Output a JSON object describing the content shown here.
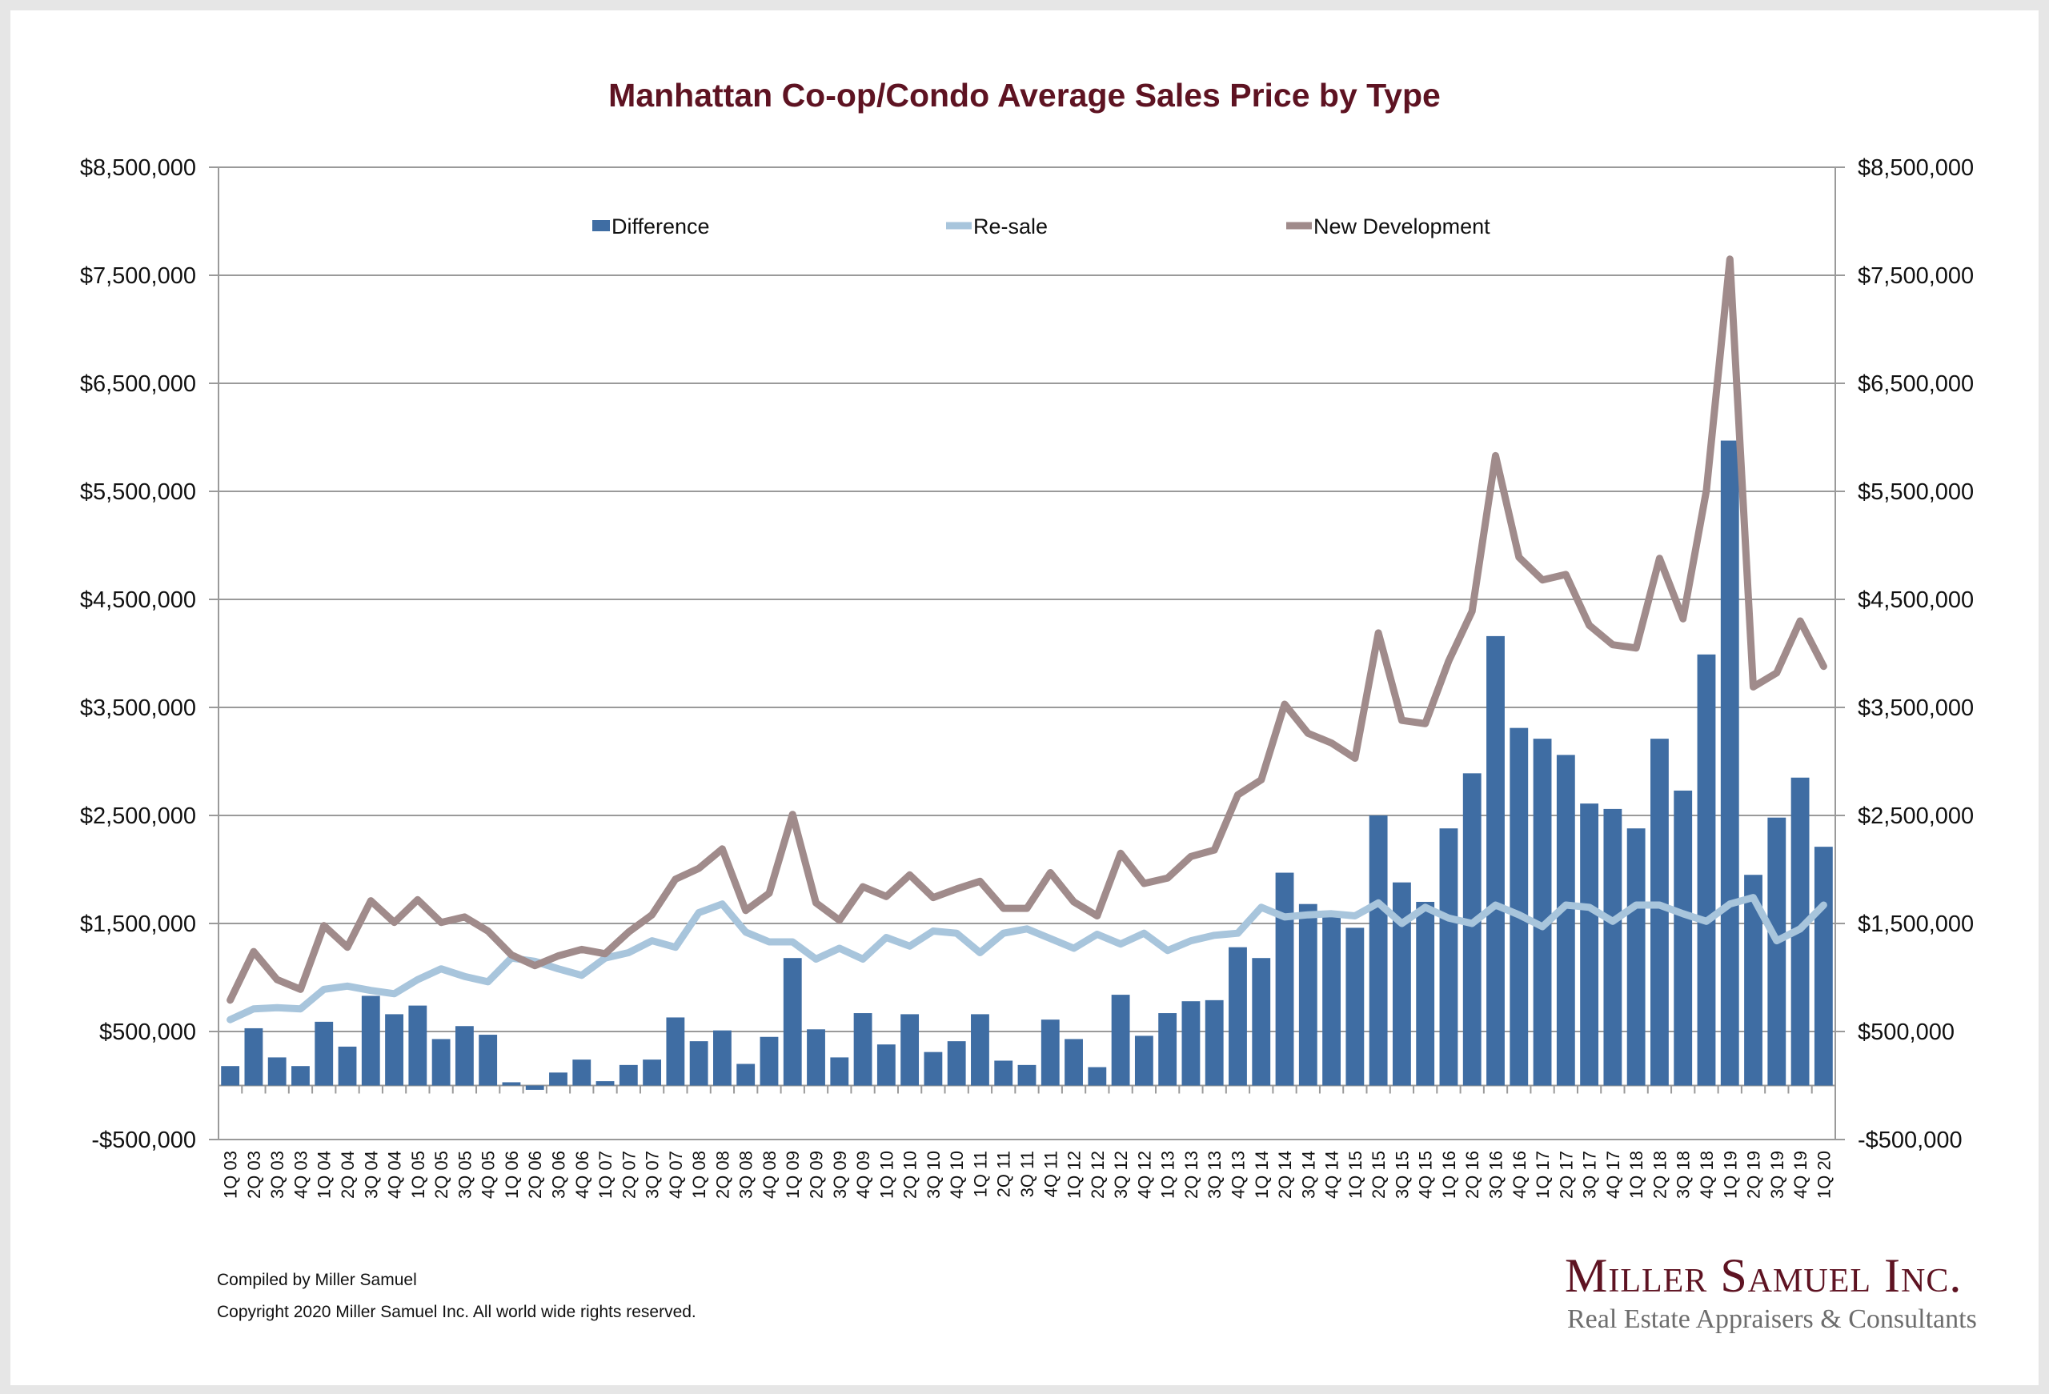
{
  "chart_data": {
    "type": "bar+line",
    "title": "Manhattan Co-op/Condo Average Sales Price by Type",
    "ylim": [
      -500000,
      8500000
    ],
    "y_ticks": [
      -500000,
      500000,
      1500000,
      2500000,
      3500000,
      4500000,
      5500000,
      6500000,
      7500000,
      8500000
    ],
    "y_tick_labels": [
      "-$500,000",
      "$500,000",
      "$1,500,000",
      "$2,500,000",
      "$3,500,000",
      "$4,500,000",
      "$5,500,000",
      "$6,500,000",
      "$7,500,000",
      "$8,500,000"
    ],
    "secondary_axis": true,
    "grid": true,
    "legend_placement": "top",
    "categories": [
      "1Q 03",
      "2Q 03",
      "3Q 03",
      "4Q 03",
      "1Q 04",
      "2Q 04",
      "3Q 04",
      "4Q 04",
      "1Q 05",
      "2Q 05",
      "3Q 05",
      "4Q 05",
      "1Q 06",
      "2Q 06",
      "3Q 06",
      "4Q 06",
      "1Q 07",
      "2Q 07",
      "3Q 07",
      "4Q 07",
      "1Q 08",
      "2Q 08",
      "3Q 08",
      "4Q 08",
      "1Q 09",
      "2Q 09",
      "3Q 09",
      "4Q 09",
      "1Q 10",
      "2Q 10",
      "3Q 10",
      "4Q 10",
      "1Q 11",
      "2Q 11",
      "3Q 11",
      "4Q 11",
      "1Q 12",
      "2Q 12",
      "3Q 12",
      "4Q 12",
      "1Q 13",
      "2Q 13",
      "3Q 13",
      "4Q 13",
      "1Q 14",
      "2Q 14",
      "3Q 14",
      "4Q 14",
      "1Q 15",
      "2Q 15",
      "3Q 15",
      "4Q 15",
      "1Q 16",
      "2Q 16",
      "3Q 16",
      "4Q 16",
      "1Q 17",
      "2Q 17",
      "3Q 17",
      "4Q 17",
      "1Q 18",
      "2Q 18",
      "3Q 18",
      "4Q 18",
      "1Q 19",
      "2Q 19",
      "3Q 19",
      "4Q 19",
      "1Q 20"
    ],
    "series": [
      {
        "name": "Difference",
        "type": "bar",
        "color": "#3f6da3",
        "values": [
          180000,
          530000,
          260000,
          180000,
          590000,
          360000,
          830000,
          660000,
          740000,
          430000,
          550000,
          470000,
          30000,
          -40000,
          120000,
          240000,
          40000,
          190000,
          240000,
          630000,
          410000,
          510000,
          200000,
          450000,
          1180000,
          520000,
          260000,
          670000,
          380000,
          660000,
          310000,
          410000,
          660000,
          230000,
          190000,
          610000,
          430000,
          170000,
          840000,
          460000,
          670000,
          780000,
          790000,
          1280000,
          1180000,
          1970000,
          1680000,
          1580000,
          1460000,
          2500000,
          1880000,
          1700000,
          2380000,
          2890000,
          4160000,
          3310000,
          3210000,
          3060000,
          2610000,
          2560000,
          2380000,
          3210000,
          2730000,
          3990000,
          5970000,
          1950000,
          2480000,
          2850000,
          2210000
        ]
      },
      {
        "name": "Re-sale",
        "type": "line",
        "color": "#a8c5dc",
        "values": [
          610000,
          710000,
          720000,
          710000,
          890000,
          920000,
          880000,
          850000,
          980000,
          1080000,
          1010000,
          960000,
          1180000,
          1150000,
          1080000,
          1020000,
          1180000,
          1230000,
          1340000,
          1280000,
          1600000,
          1680000,
          1420000,
          1330000,
          1330000,
          1170000,
          1270000,
          1170000,
          1370000,
          1290000,
          1430000,
          1410000,
          1230000,
          1410000,
          1450000,
          1360000,
          1270000,
          1400000,
          1310000,
          1410000,
          1250000,
          1340000,
          1390000,
          1410000,
          1650000,
          1560000,
          1580000,
          1590000,
          1570000,
          1690000,
          1500000,
          1650000,
          1550000,
          1500000,
          1670000,
          1580000,
          1470000,
          1670000,
          1650000,
          1520000,
          1670000,
          1670000,
          1590000,
          1520000,
          1680000,
          1740000,
          1340000,
          1450000,
          1670000
        ]
      },
      {
        "name": "New Development",
        "type": "line",
        "color": "#a08b8b",
        "values": [
          790000,
          1240000,
          980000,
          890000,
          1480000,
          1280000,
          1710000,
          1510000,
          1720000,
          1510000,
          1560000,
          1430000,
          1210000,
          1110000,
          1200000,
          1260000,
          1220000,
          1420000,
          1580000,
          1910000,
          2010000,
          2190000,
          1620000,
          1780000,
          2510000,
          1690000,
          1530000,
          1840000,
          1750000,
          1950000,
          1740000,
          1820000,
          1890000,
          1640000,
          1640000,
          1970000,
          1700000,
          1570000,
          2150000,
          1870000,
          1920000,
          2120000,
          2180000,
          2690000,
          2830000,
          3530000,
          3260000,
          3170000,
          3030000,
          4190000,
          3380000,
          3350000,
          3930000,
          4390000,
          5830000,
          4890000,
          4680000,
          4730000,
          4260000,
          4080000,
          4050000,
          4880000,
          4320000,
          5510000,
          7650000,
          3690000,
          3820000,
          4300000,
          3880000
        ]
      }
    ]
  },
  "footer": {
    "compiled": "Compiled by Miller Samuel",
    "copyright": "Copyright 2020 Miller Samuel Inc.  All world wide rights reserved."
  },
  "logo": {
    "name": "Miller Samuel Inc.",
    "tagline": "Real Estate Appraisers & Consultants"
  }
}
